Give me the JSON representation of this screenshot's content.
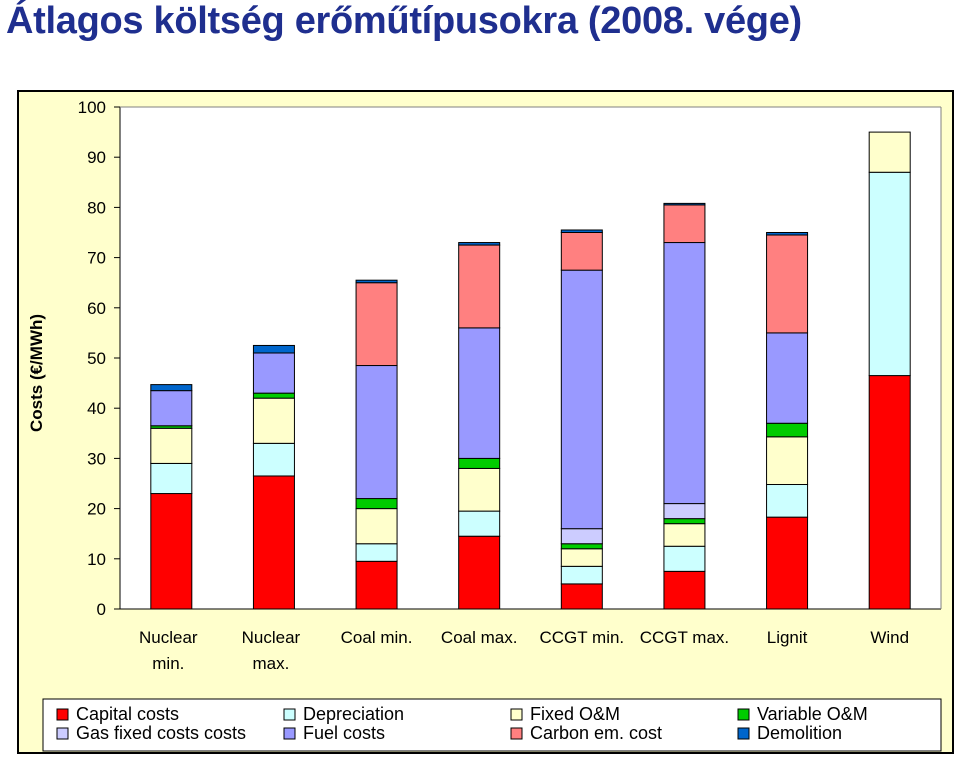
{
  "title": "Átlagos költség erőműtípusokra (2008. vége)",
  "chart_data": {
    "type": "bar",
    "stacked": true,
    "ylabel": "Costs (€/MWh)",
    "ylim": [
      0,
      100
    ],
    "yticks": [
      0,
      10,
      20,
      30,
      40,
      50,
      60,
      70,
      80,
      90,
      100
    ],
    "grid": false,
    "legend_position": "bottom",
    "categories": [
      [
        "Nuclear",
        "min."
      ],
      [
        "Nuclear",
        "max."
      ],
      [
        "Coal min."
      ],
      [
        "Coal max."
      ],
      [
        "CCGT min."
      ],
      [
        "CCGT max."
      ],
      [
        "Lignit"
      ],
      [
        "Wind"
      ]
    ],
    "series": [
      {
        "name": "Capital costs",
        "color": "#ff0000",
        "values": [
          23,
          26.5,
          9.5,
          14.5,
          5,
          7.5,
          18.3,
          46.5
        ]
      },
      {
        "name": "Depreciation",
        "color": "#ccffff",
        "values": [
          6,
          6.5,
          3.5,
          5,
          3.5,
          5,
          6.5,
          40.5
        ]
      },
      {
        "name": "Fixed O&M",
        "color": "#ffffcc",
        "values": [
          7,
          9,
          7,
          8.5,
          3.5,
          4.5,
          9.5,
          8
        ]
      },
      {
        "name": "Variable O&M",
        "color": "#00cc00",
        "values": [
          0.5,
          1,
          2,
          2,
          1,
          1,
          2.7,
          0
        ]
      },
      {
        "name": "Gas fixed costs costs",
        "color": "#ccccff",
        "values": [
          0,
          0,
          0,
          0,
          3,
          3,
          0,
          0
        ]
      },
      {
        "name": "Fuel costs",
        "color": "#9999ff",
        "values": [
          7,
          8,
          26.5,
          26,
          51.5,
          52,
          18,
          0
        ]
      },
      {
        "name": "Carbon em. cost",
        "color": "#ff8080",
        "values": [
          0,
          0,
          16.5,
          16.5,
          7.5,
          7.5,
          19.5,
          0
        ]
      },
      {
        "name": "Demolition",
        "color": "#0066cc",
        "values": [
          1.2,
          1.5,
          0.5,
          0.5,
          0.5,
          0.3,
          0.5,
          0
        ]
      }
    ]
  }
}
